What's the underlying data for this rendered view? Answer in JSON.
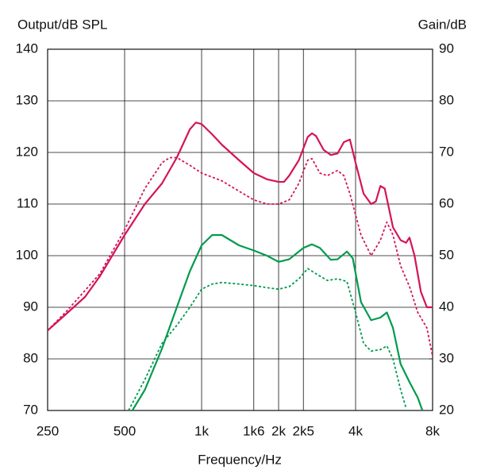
{
  "chart_data": {
    "type": "line",
    "ylabel": "Output/dB SPL",
    "y2label": "Gain/dB",
    "xlabel": "Frequency/Hz",
    "xscale": "log",
    "xlim": [
      250,
      8000
    ],
    "xticks": [
      {
        "value": 250,
        "label": "250"
      },
      {
        "value": 500,
        "label": "500"
      },
      {
        "value": 1000,
        "label": "1k"
      },
      {
        "value": 1600,
        "label": "1k6"
      },
      {
        "value": 2000,
        "label": "2k"
      },
      {
        "value": 2500,
        "label": "2k5"
      },
      {
        "value": 4000,
        "label": "4k"
      },
      {
        "value": 8000,
        "label": "8k"
      }
    ],
    "ylim": [
      70,
      140
    ],
    "yticks": [
      70,
      80,
      90,
      100,
      110,
      120,
      130,
      140
    ],
    "y2lim": [
      20,
      90
    ],
    "y2ticks": [
      20,
      30,
      40,
      50,
      60,
      70,
      80,
      90
    ],
    "grid": true,
    "series": [
      {
        "color": "#d4145a",
        "linestyle": "solid",
        "x": [
          250,
          300,
          350,
          400,
          500,
          600,
          700,
          800,
          900,
          950,
          1000,
          1100,
          1200,
          1400,
          1600,
          1800,
          2000,
          2100,
          2200,
          2400,
          2600,
          2700,
          2800,
          3000,
          3200,
          3400,
          3600,
          3800,
          4000,
          4300,
          4600,
          4800,
          5000,
          5200,
          5600,
          6000,
          6300,
          6500,
          6800,
          7200,
          7600,
          8000
        ],
        "values": [
          85.5,
          89,
          92,
          96,
          104,
          110,
          114,
          119,
          124.5,
          125.8,
          125.5,
          123.5,
          121.5,
          118.5,
          116,
          114.8,
          114.3,
          114.3,
          115.5,
          118.5,
          123,
          123.7,
          123.2,
          120.5,
          119.5,
          119.8,
          122,
          122.5,
          118,
          112,
          110,
          110.5,
          113.5,
          113,
          105.5,
          103,
          102.5,
          103.5,
          100,
          93,
          90,
          90
        ]
      },
      {
        "color": "#d4145a",
        "linestyle": "dashed",
        "x": [
          250,
          300,
          400,
          500,
          600,
          700,
          750,
          800,
          900,
          1000,
          1200,
          1400,
          1600,
          1800,
          2000,
          2200,
          2400,
          2600,
          2700,
          2900,
          3100,
          3400,
          3600,
          3800,
          4200,
          4600,
          5000,
          5300,
          5600,
          6000,
          6500,
          7000,
          7600,
          8000
        ],
        "values": [
          85.5,
          89.5,
          96.5,
          105,
          113,
          118,
          119,
          119,
          117.5,
          116,
          114.5,
          112.5,
          110.8,
          110,
          110,
          110.8,
          114,
          118.5,
          118.8,
          116,
          115.5,
          116.5,
          115.5,
          112,
          104,
          100,
          103,
          106.5,
          104,
          98,
          94,
          89,
          86,
          80.5
        ]
      },
      {
        "color": "#009b4e",
        "linestyle": "solid",
        "axis": "y2",
        "x": [
          536,
          600,
          700,
          800,
          900,
          1000,
          1100,
          1200,
          1400,
          1600,
          1800,
          2000,
          2200,
          2500,
          2700,
          2900,
          3200,
          3400,
          3700,
          3900,
          4200,
          4600,
          5000,
          5300,
          5600,
          6000,
          6500,
          7000,
          7300
        ],
        "values": [
          20,
          24,
          32,
          40,
          47,
          52,
          54,
          54,
          52,
          51,
          50,
          48.8,
          49.3,
          51.5,
          52.2,
          51.5,
          49.2,
          49.3,
          50.8,
          49.5,
          41,
          37.5,
          38,
          39,
          36,
          29,
          25.5,
          22.5,
          20
        ]
      },
      {
        "color": "#009b4e",
        "linestyle": "dashed",
        "axis": "y2",
        "x": [
          518,
          600,
          700,
          800,
          900,
          1000,
          1100,
          1200,
          1400,
          1600,
          1800,
          2000,
          2200,
          2400,
          2600,
          2800,
          3100,
          3400,
          3700,
          4000,
          4300,
          4600,
          5000,
          5300,
          5600,
          6000,
          6300
        ],
        "values": [
          20,
          26,
          33,
          36.5,
          40,
          43.5,
          44.5,
          44.8,
          44.5,
          44.2,
          43.8,
          43.5,
          44,
          45.5,
          47.5,
          46.5,
          45.2,
          45.5,
          45,
          39,
          33,
          31.5,
          31.8,
          32.5,
          30,
          24,
          20.5
        ]
      }
    ]
  }
}
